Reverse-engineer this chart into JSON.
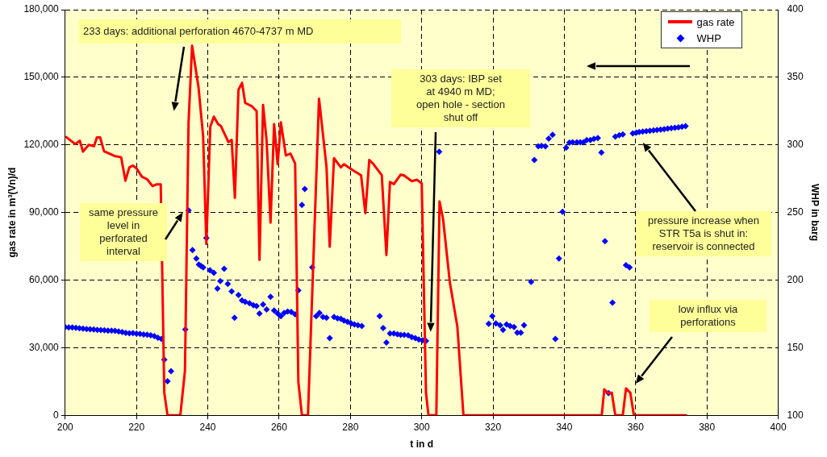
{
  "chart_data": {
    "type": "line",
    "xlabel": "t in d",
    "ylabel": "gas rate in m³(Vn)/d",
    "y2label": "WHP in barg",
    "xlim": [
      200,
      400
    ],
    "xticks": [
      200,
      220,
      240,
      260,
      280,
      300,
      320,
      340,
      360,
      380,
      400
    ],
    "ylim": [
      0,
      180000
    ],
    "yticks": [
      0,
      {
        "value": 30000,
        "label": "30,000"
      },
      {
        "value": 60000,
        "label": "60,000"
      },
      {
        "value": 90000,
        "label": "90,000"
      },
      {
        "value": 120000,
        "label": "120,000"
      },
      {
        "value": 150000,
        "label": "150,000"
      },
      {
        "value": 180000,
        "label": "180,000"
      }
    ],
    "y2lim": [
      100,
      400
    ],
    "y2ticks": [
      100,
      150,
      200,
      250,
      300,
      350,
      400
    ],
    "grid": true,
    "legend": "top right",
    "series": [
      {
        "name": "gas rate",
        "color": "#ff0000",
        "marker": "none",
        "x": [
          200.1,
          202.8,
          204.1,
          205,
          206.6,
          208.1,
          208.9,
          209.8,
          210.9,
          213.8,
          215.7,
          216.9,
          218,
          219,
          220,
          221.5,
          223,
          224.5,
          225.7,
          226.8,
          227.8,
          228.7,
          232.3,
          233.6,
          234.6,
          235.6,
          237.4,
          238.7,
          239.6,
          240.7,
          241.7,
          242.9,
          243.7,
          245.8,
          246.7,
          247.6,
          248.6,
          249.6,
          250.5,
          252.4,
          253.7,
          254.5,
          255.5,
          256.5,
          257.6,
          258.6,
          259.6,
          260.5,
          261.9,
          263.2,
          264.5,
          265.4,
          266.4,
          268.1,
          271.2,
          273.3,
          274.2,
          275.4,
          277.3,
          278.2,
          280.7,
          283,
          284.2,
          285.3,
          286.5,
          288.8,
          290.1,
          291.1,
          292.2,
          294.1,
          295,
          297.2,
          298.7,
          300,
          301.2,
          301.9,
          304.1,
          305,
          306,
          307.9,
          310,
          311.7,
          350.5,
          351.2,
          352.3,
          353.3,
          354.3,
          356.4,
          357.3,
          358.5,
          359.5,
          374.4
        ],
        "values": [
          123700,
          120400,
          121800,
          117000,
          120000,
          119400,
          123300,
          123300,
          117200,
          115100,
          114500,
          104100,
          110000,
          110800,
          109600,
          105900,
          104700,
          101700,
          102500,
          102500,
          10000,
          0,
          0,
          19800,
          129800,
          164000,
          145600,
          123700,
          76000,
          128000,
          132500,
          129200,
          128300,
          121200,
          122200,
          96500,
          144400,
          147500,
          138600,
          137100,
          134900,
          68900,
          137700,
          121800,
          85500,
          129200,
          111400,
          130000,
          115300,
          116100,
          111700,
          14900,
          0,
          0,
          140500,
          110200,
          74800,
          114100,
          110000,
          111400,
          108700,
          106500,
          89700,
          113300,
          111400,
          106500,
          71100,
          103500,
          102600,
          106800,
          106500,
          103900,
          104500,
          102900,
          10000,
          0,
          0,
          94900,
          87000,
          58900,
          39300,
          0,
          0,
          11500,
          9800,
          10000,
          0,
          0,
          11900,
          10000,
          0,
          0
        ]
      },
      {
        "name": "WHP",
        "type": "scatter",
        "axis": "y2",
        "color": "#0000ff",
        "marker": "diamond",
        "x": [
          200,
          201,
          202,
          203,
          204,
          205,
          206,
          207,
          208,
          209,
          210,
          211,
          212,
          213,
          214,
          215,
          216,
          217,
          218,
          219,
          220,
          221,
          222,
          223,
          224,
          225,
          226,
          227,
          227.8,
          228.7,
          229.7,
          233.7,
          234.6,
          235.7,
          236.8,
          237.5,
          238.1,
          238.7,
          239.6,
          240.6,
          241.7,
          242.7,
          243.5,
          244.6,
          245.6,
          246.7,
          247.5,
          248.6,
          249.6,
          250.5,
          251.7,
          252.8,
          253.7,
          254.5,
          255.5,
          256.5,
          257.6,
          258.6,
          259.6,
          260.5,
          261.4,
          262.4,
          263.4,
          264.5,
          265.4,
          266.4,
          267.2,
          269.3,
          270.4,
          271.3,
          272.3,
          273.3,
          274.2,
          275.4,
          276.4,
          277.3,
          278.2,
          279.2,
          280.2,
          281.1,
          282.1,
          283.2,
          288.2,
          289.2,
          290.1,
          291.1,
          292.2,
          293.2,
          294.1,
          295.1,
          296.2,
          297.2,
          298.2,
          299.2,
          300.2,
          301.2,
          304.9,
          318.8,
          319.8,
          320.8,
          322,
          322.8,
          323.8,
          324.8,
          325.9,
          326.8,
          327.8,
          328.7,
          330.7,
          331.6,
          332.7,
          333.6,
          334.7,
          335.6,
          336.7,
          337.5,
          338.5,
          339.5,
          340.5,
          341.4,
          342.3,
          343.5,
          344.5,
          345.4,
          346.3,
          347.3,
          348.3,
          349.4,
          350.4,
          351.4,
          352.4,
          353.5,
          354.3,
          355.4,
          356.4,
          357.3,
          358.3,
          359.2,
          360.2,
          361,
          362,
          363,
          364,
          365,
          366,
          367,
          368,
          369,
          370,
          371,
          372,
          373,
          374
        ],
        "values": [
          165.2,
          165,
          164.9,
          164.6,
          164.4,
          164,
          163.8,
          163.6,
          163.4,
          163.2,
          163,
          162.8,
          162.6,
          162.6,
          162.4,
          162,
          161.6,
          161,
          160.6,
          160.8,
          160.4,
          160.2,
          159.8,
          159.6,
          159.2,
          158.6,
          157.4,
          156.4,
          141.1,
          125.2,
          132.6,
          163.5,
          251.5,
          222.2,
          215.9,
          211.4,
          210.4,
          209.3,
          231.1,
          207.3,
          205.3,
          193.7,
          199.2,
          208.3,
          197.1,
          191.6,
          172.1,
          189,
          184.9,
          183.9,
          182.9,
          181.4,
          180.8,
          175.3,
          181.9,
          178.2,
          187.6,
          177.4,
          175.3,
          173.3,
          175.7,
          176.8,
          176.4,
          174.7,
          192.4,
          255.6,
          267.4,
          209.3,
          173.3,
          175.7,
          172.7,
          172.1,
          157,
          172.7,
          171.7,
          171.3,
          170,
          169.2,
          168,
          167.2,
          166.6,
          166,
          173.3,
          164.5,
          153.8,
          160.5,
          160.5,
          159.9,
          159.5,
          159.5,
          159.1,
          157.8,
          157,
          156,
          155.4,
          155,
          294.9,
          167.6,
          173.3,
          168,
          166.6,
          163.1,
          167.2,
          166,
          165.2,
          161.1,
          161.1,
          166.6,
          198.6,
          288.8,
          298.9,
          299.3,
          298.9,
          304.6,
          307.5,
          156.4,
          215.9,
          250.5,
          297.9,
          301.6,
          302,
          302,
          302,
          302,
          303.6,
          303.6,
          304.4,
          305,
          294.3,
          228.7,
          116.3,
          183.3,
          306.1,
          307.1,
          307.7,
          211,
          209.3,
          308.5,
          309.1,
          309.5,
          309.8,
          310.1,
          310.4,
          310.7,
          311,
          311.3,
          311.6,
          312,
          312.3,
          312.6,
          313,
          313.4,
          313.8
        ]
      }
    ],
    "annotations": [
      "233 days: additional perforation 4670-4737 m MD",
      "same pressure\nlevel in\nperforated\ninterval",
      "303 days: IBP set\nat 4940 m MD;\nopen hole - section\nshut off",
      "pressure increase when\nSTR T5a is shut in:\nreservoir is connected",
      "low influx via\nperforations"
    ]
  }
}
